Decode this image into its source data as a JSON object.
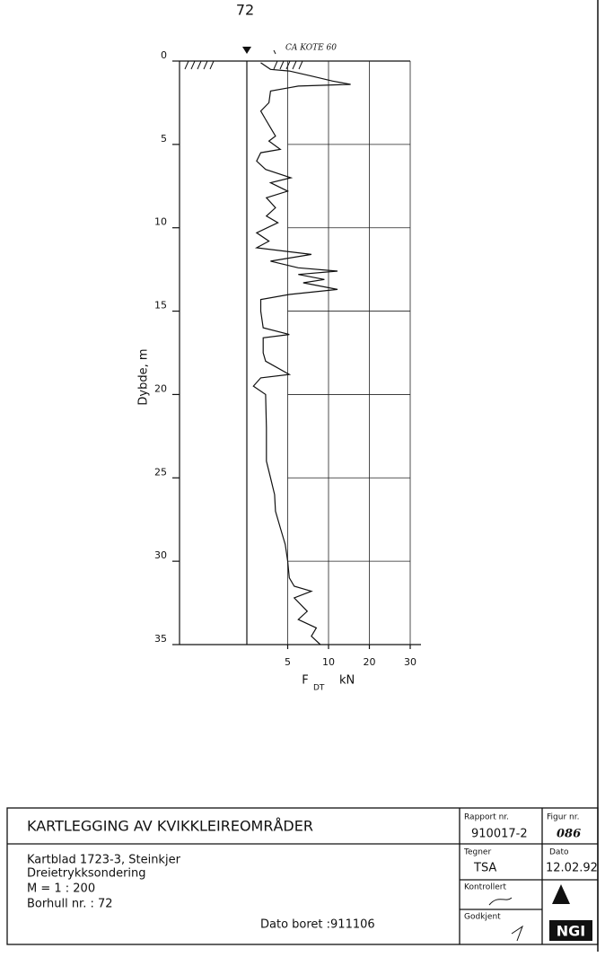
{
  "page_number": "72",
  "chart_data": {
    "type": "line",
    "annotation": "CA KOTE 60",
    "ylabel": "Dybde, m",
    "xlabel": "F",
    "xlabel_sub": "DT",
    "xunit": "kN",
    "ylim": [
      0,
      35
    ],
    "yticks": [
      0,
      5,
      10,
      15,
      20,
      25,
      30,
      35
    ],
    "xlim": [
      0,
      30
    ],
    "xticks": [
      5,
      10,
      20,
      30
    ],
    "grid": true,
    "color": "#111111",
    "depth": [
      0.1,
      0.5,
      0.6,
      0.9,
      1.2,
      1.4,
      1.5,
      1.6,
      1.8,
      2.5,
      3.0,
      3.5,
      4.0,
      4.5,
      4.8,
      5.3,
      5.5,
      6.0,
      6.5,
      7.0,
      7.3,
      7.8,
      8.2,
      8.8,
      9.3,
      9.7,
      10.3,
      10.8,
      11.2,
      11.6,
      12.0,
      12.4,
      12.6,
      12.8,
      13.1,
      13.3,
      13.7,
      14.0,
      14.3,
      15.0,
      16.0,
      16.4,
      16.6,
      17.5,
      18.0,
      18.8,
      19.0,
      19.5,
      20.0,
      22.0,
      24.0,
      25.0,
      26.0,
      27.0,
      28.0,
      29.0,
      30.0,
      31.0,
      31.5,
      31.8,
      32.2,
      33.0,
      33.5,
      34.0,
      34.5,
      35.0
    ],
    "values": [
      1.7,
      2.9,
      5.2,
      7.9,
      11,
      15.4,
      6.3,
      5.2,
      2.9,
      2.7,
      1.7,
      2.3,
      2.9,
      3.5,
      2.7,
      4.1,
      1.7,
      1.2,
      2.3,
      5.4,
      2.9,
      5,
      2.4,
      3.5,
      2.4,
      3.8,
      1.2,
      2.7,
      1.2,
      7.9,
      2.9,
      6.3,
      12.2,
      6.3,
      9.5,
      6.9,
      12.2,
      5.2,
      1.7,
      1.7,
      2,
      5.2,
      2,
      2,
      2.3,
      5.2,
      1.7,
      0.8,
      2.3,
      2.4,
      2.4,
      2.9,
      3.4,
      3.5,
      4.1,
      4.7,
      5,
      5.2,
      5.8,
      7.9,
      5.8,
      7.4,
      6.3,
      8.5,
      7.9,
      9
    ]
  },
  "title_block": {
    "project": "KARTLEGGING AV KVIKKLEIREOMRÅDER",
    "lines": [
      "Kartblad 1723-3, Steinkjer",
      "Dreietrykksondering",
      "M = 1 : 200",
      "Borhull nr. : 72"
    ],
    "drill_date": "Dato boret :911106",
    "report_label": "Rapport nr.",
    "report_number": "910017-2",
    "figure_label": "Figur nr.",
    "figure_number": "086",
    "drawn_label": "Tegner",
    "drawn_by": "TSA",
    "date_label": "Dato",
    "date": "12.02.92",
    "checked_label": "Kontrollert",
    "approved_label": "Godkjent",
    "logo": "NGI"
  }
}
